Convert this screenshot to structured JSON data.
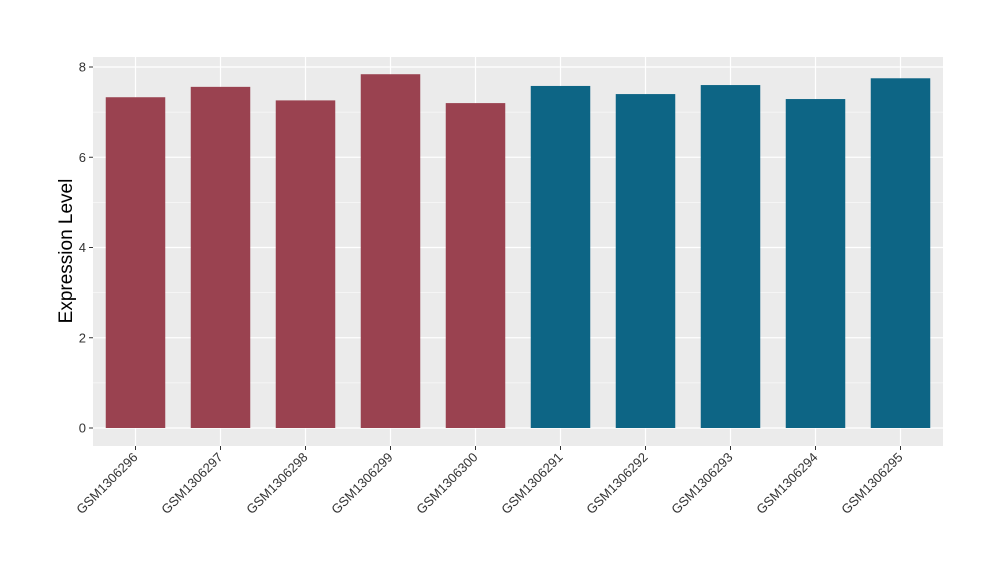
{
  "chart_data": {
    "type": "bar",
    "title": "",
    "xlabel": "",
    "ylabel": "Expression Level",
    "ylim": [
      0,
      8
    ],
    "yticks": [
      0,
      2,
      4,
      6,
      8
    ],
    "grid": true,
    "legend": "none",
    "panel_background": "#ebebeb",
    "gridline_color": "#ffffff",
    "categories": [
      "GSM1306296",
      "GSM1306297",
      "GSM1306298",
      "GSM1306299",
      "GSM1306300",
      "GSM1306291",
      "GSM1306292",
      "GSM1306293",
      "GSM1306294",
      "GSM1306295"
    ],
    "values": [
      7.33,
      7.56,
      7.26,
      7.84,
      7.2,
      7.58,
      7.4,
      7.6,
      7.29,
      7.75
    ],
    "bar_colors": [
      "#9a4250",
      "#9a4250",
      "#9a4250",
      "#9a4250",
      "#9a4250",
      "#0d6585",
      "#0d6585",
      "#0d6585",
      "#0d6585",
      "#0d6585"
    ]
  }
}
